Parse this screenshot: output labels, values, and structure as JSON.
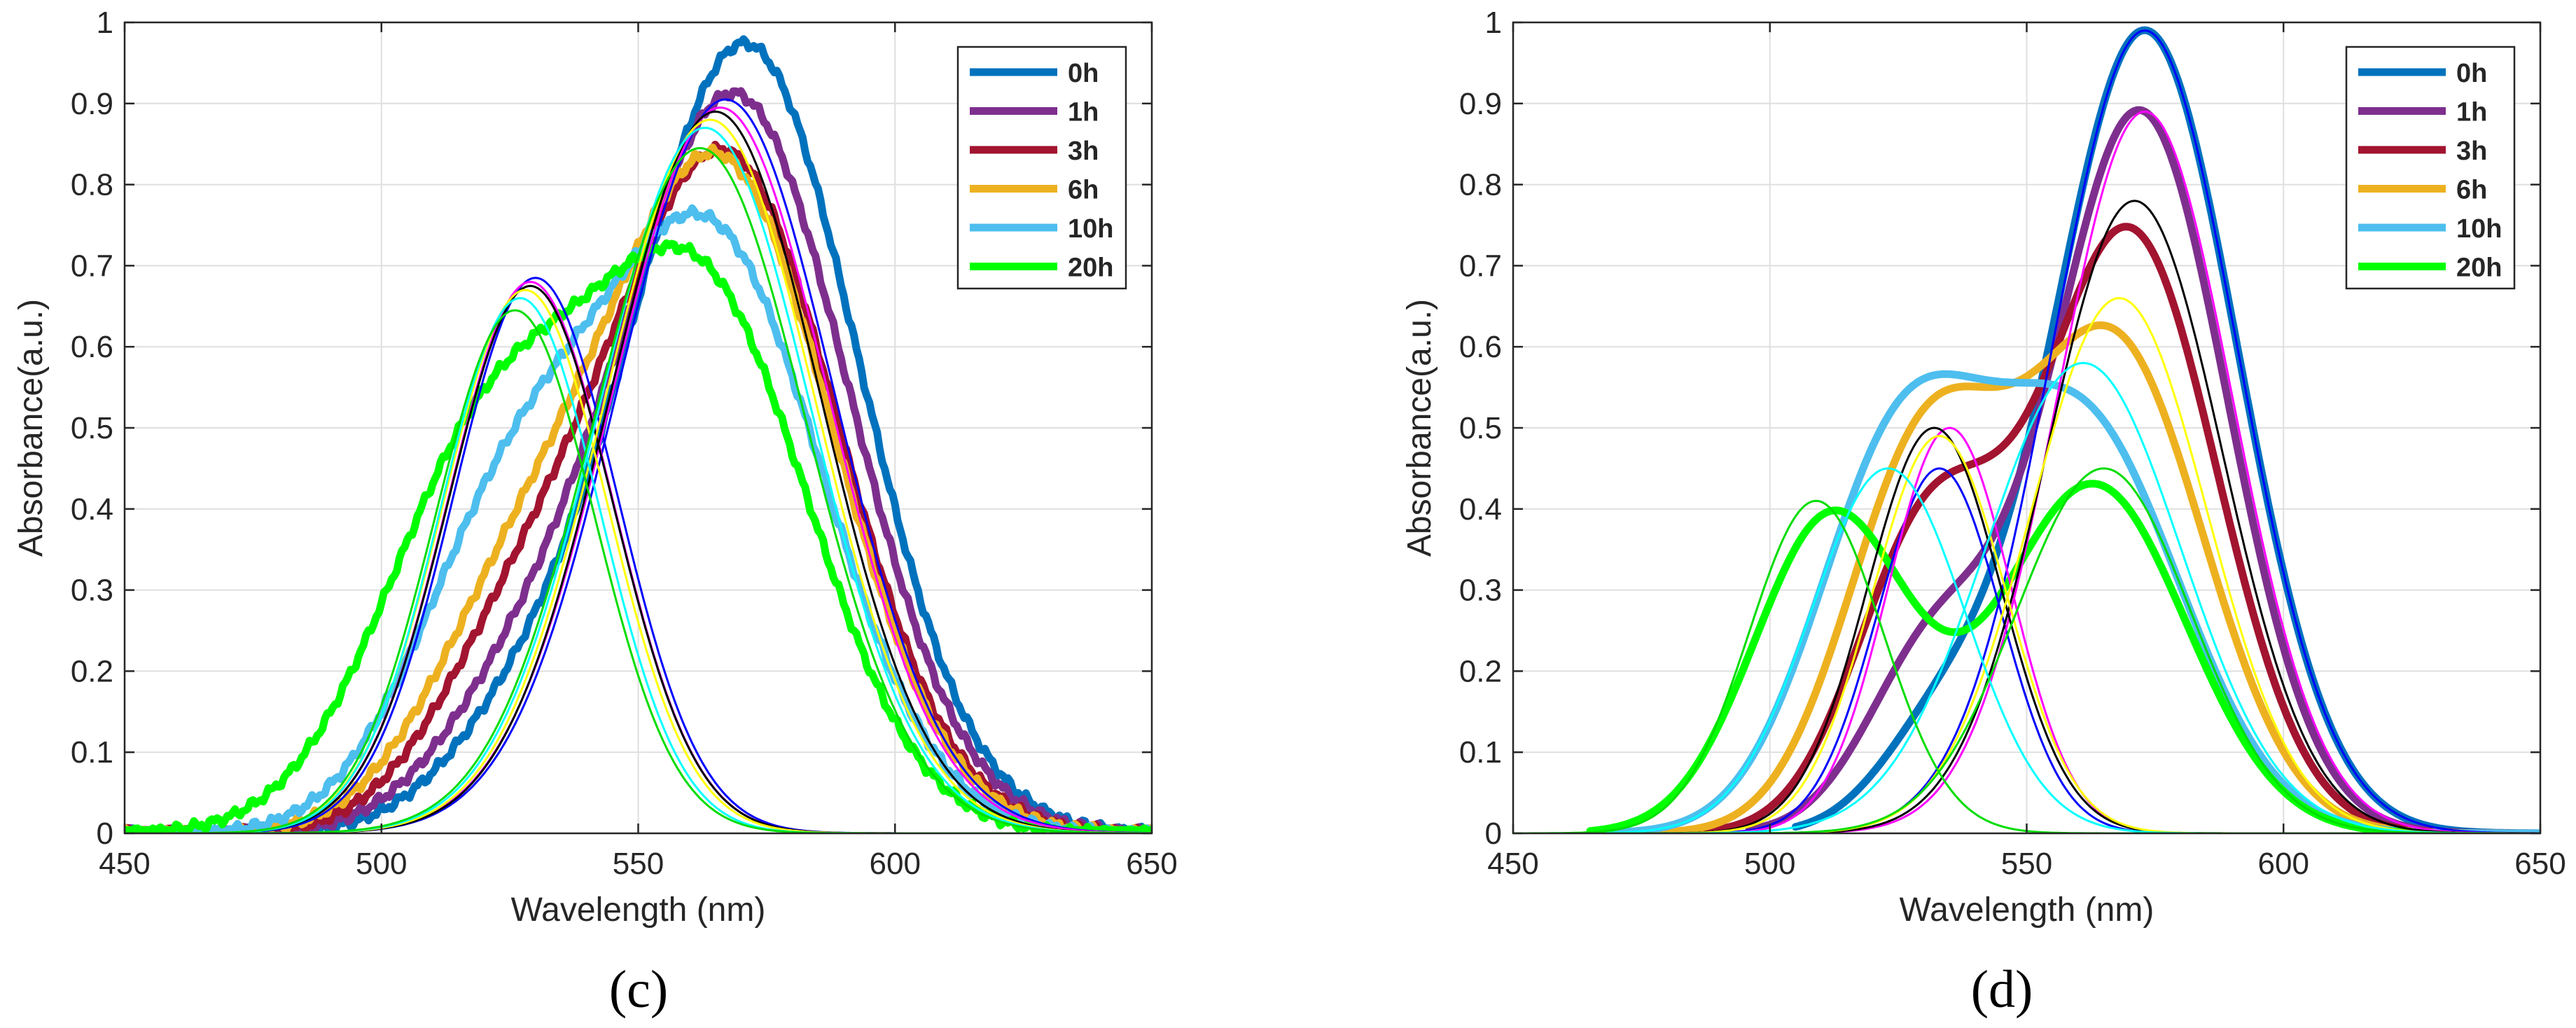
{
  "figure": {
    "panels": [
      "c",
      "d"
    ]
  },
  "chart_data": [
    {
      "type": "line",
      "panel_label": "(c)",
      "xlabel": "Wavelength (nm)",
      "ylabel": "Absorbance(a.u.)",
      "xlim": [
        450,
        650
      ],
      "ylim": [
        0,
        1
      ],
      "x_ticks": [
        450,
        500,
        550,
        600,
        650
      ],
      "y_ticks": [
        0,
        0.1,
        0.2,
        0.3,
        0.4,
        0.5,
        0.6,
        0.7,
        0.8,
        0.9,
        1
      ],
      "grid": true,
      "legend_position": "top-right",
      "legend": [
        "0h",
        "1h",
        "3h",
        "6h",
        "10h",
        "20h"
      ],
      "series": [
        {
          "name": "0h",
          "color": "#0072BD",
          "kind": "measured",
          "components": [
            {
              "mu": 571,
              "sigma": 21.8,
              "amp": 0.97
            },
            {
              "mu": 529,
              "sigma": 16.5,
              "amp": 0.11
            }
          ],
          "noise": true
        },
        {
          "name": "1h",
          "color": "#7E2F8E",
          "kind": "measured",
          "components": [
            {
              "mu": 569,
              "sigma": 22,
              "amp": 0.905
            },
            {
              "mu": 528,
              "sigma": 17,
              "amp": 0.14
            }
          ],
          "noise": true
        },
        {
          "name": "3h",
          "color": "#A2142F",
          "kind": "measured",
          "components": [
            {
              "mu": 567,
              "sigma": 22,
              "amp": 0.83
            },
            {
              "mu": 527,
              "sigma": 17,
              "amp": 0.2
            }
          ],
          "noise": true
        },
        {
          "name": "6h",
          "color": "#EDB120",
          "kind": "measured",
          "components": [
            {
              "mu": 566,
              "sigma": 22,
              "amp": 0.82
            },
            {
              "mu": 526,
              "sigma": 17.5,
              "amp": 0.24
            }
          ],
          "noise": true
        },
        {
          "name": "10h",
          "color": "#4DBEEE",
          "kind": "measured",
          "components": [
            {
              "mu": 564,
              "sigma": 22,
              "amp": 0.73
            },
            {
              "mu": 524,
              "sigma": 18,
              "amp": 0.34
            }
          ],
          "noise": true
        },
        {
          "name": "20h",
          "color": "#00FF00",
          "kind": "measured",
          "components": [
            {
              "mu": 562,
              "sigma": 21.5,
              "amp": 0.66
            },
            {
              "mu": 520,
              "sigma": 20,
              "amp": 0.45
            }
          ],
          "noise": true
        },
        {
          "name": "fit-0h-a",
          "color": "#0000FF",
          "kind": "fit",
          "components": [
            {
              "mu": 530,
              "sigma": 16,
              "amp": 0.685
            }
          ]
        },
        {
          "name": "fit-0h-b",
          "color": "#0000FF",
          "kind": "fit",
          "components": [
            {
              "mu": 567,
              "sigma": 21,
              "amp": 0.905
            }
          ]
        },
        {
          "name": "fit-1h-a",
          "color": "#FF00FF",
          "kind": "fit",
          "components": [
            {
              "mu": 529,
              "sigma": 16,
              "amp": 0.68
            }
          ]
        },
        {
          "name": "fit-1h-b",
          "color": "#FF00FF",
          "kind": "fit",
          "components": [
            {
              "mu": 566,
              "sigma": 21,
              "amp": 0.895
            }
          ]
        },
        {
          "name": "fit-3h-a",
          "color": "#000000",
          "kind": "fit",
          "components": [
            {
              "mu": 529,
              "sigma": 16,
              "amp": 0.675
            }
          ]
        },
        {
          "name": "fit-3h-b",
          "color": "#000000",
          "kind": "fit",
          "components": [
            {
              "mu": 565,
              "sigma": 20.5,
              "amp": 0.89
            }
          ]
        },
        {
          "name": "fit-6h-a",
          "color": "#FFFF00",
          "kind": "fit",
          "components": [
            {
              "mu": 528,
              "sigma": 16,
              "amp": 0.67
            }
          ]
        },
        {
          "name": "fit-6h-b",
          "color": "#FFFF00",
          "kind": "fit",
          "components": [
            {
              "mu": 564,
              "sigma": 20.5,
              "amp": 0.88
            }
          ]
        },
        {
          "name": "fit-10h-a",
          "color": "#00FFFF",
          "kind": "fit",
          "components": [
            {
              "mu": 527,
              "sigma": 15.5,
              "amp": 0.66
            }
          ]
        },
        {
          "name": "fit-10h-b",
          "color": "#00FFFF",
          "kind": "fit",
          "components": [
            {
              "mu": 563,
              "sigma": 20.5,
              "amp": 0.87
            }
          ]
        },
        {
          "name": "fit-20h-a",
          "color": "#00DD00",
          "kind": "fit",
          "components": [
            {
              "mu": 526,
              "sigma": 15.5,
              "amp": 0.645
            }
          ]
        },
        {
          "name": "fit-20h-b",
          "color": "#00DD00",
          "kind": "fit",
          "components": [
            {
              "mu": 562,
              "sigma": 20.5,
              "amp": 0.845
            }
          ]
        }
      ]
    },
    {
      "type": "line",
      "panel_label": "(d)",
      "xlabel": "Wavelength (nm)",
      "ylabel": "Absorbance(a.u.)",
      "xlim": [
        450,
        650
      ],
      "ylim": [
        0,
        1
      ],
      "x_ticks": [
        450,
        500,
        550,
        600,
        650
      ],
      "y_ticks": [
        0,
        0.1,
        0.2,
        0.3,
        0.4,
        0.5,
        0.6,
        0.7,
        0.8,
        0.9,
        1
      ],
      "grid": true,
      "legend_position": "top-right",
      "legend": [
        "0h",
        "1h",
        "3h",
        "6h",
        "10h",
        "20h"
      ],
      "series": [
        {
          "name": "0h",
          "color": "#0072BD",
          "kind": "measured",
          "components": [
            {
              "mu": 573,
              "sigma": 18,
              "amp": 0.99
            },
            {
              "mu": 533,
              "sigma": 12,
              "amp": 0.11
            }
          ],
          "xstart": 505
        },
        {
          "name": "1h",
          "color": "#7E2F8E",
          "kind": "measured",
          "components": [
            {
              "mu": 572,
              "sigma": 17,
              "amp": 0.89
            },
            {
              "mu": 532,
              "sigma": 13,
              "amp": 0.22
            }
          ],
          "xstart": 496
        },
        {
          "name": "3h",
          "color": "#A2142F",
          "kind": "measured",
          "components": [
            {
              "mu": 570,
              "sigma": 17,
              "amp": 0.74
            },
            {
              "mu": 531,
              "sigma": 14,
              "amp": 0.37
            }
          ],
          "xstart": 484
        },
        {
          "name": "6h",
          "color": "#EDB120",
          "kind": "measured",
          "components": [
            {
              "mu": 567,
              "sigma": 17.5,
              "amp": 0.6
            },
            {
              "mu": 530,
              "sigma": 15,
              "amp": 0.46
            }
          ],
          "xstart": 478
        },
        {
          "name": "10h",
          "color": "#4DBEEE",
          "kind": "measured",
          "components": [
            {
              "mu": 561,
              "sigma": 19,
              "amp": 0.5
            },
            {
              "mu": 525,
              "sigma": 16,
              "amp": 0.45
            }
          ],
          "xstart": 469
        },
        {
          "name": "20h",
          "color": "#00FF00",
          "kind": "measured",
          "components": [
            {
              "mu": 563,
              "sigma": 18,
              "amp": 0.43
            },
            {
              "mu": 512,
              "sigma": 15,
              "amp": 0.39
            }
          ],
          "xstart": 465,
          "xend": 625
        },
        {
          "name": "fit-0h-a",
          "color": "#0000FF",
          "kind": "fit",
          "components": [
            {
              "mu": 533,
              "sigma": 12,
              "amp": 0.45
            }
          ]
        },
        {
          "name": "fit-0h-b",
          "color": "#0000FF",
          "kind": "fit",
          "components": [
            {
              "mu": 573,
              "sigma": 18,
              "amp": 0.99
            }
          ]
        },
        {
          "name": "fit-1h-a",
          "color": "#FF00FF",
          "kind": "fit",
          "components": [
            {
              "mu": 535,
              "sigma": 12,
              "amp": 0.5
            }
          ]
        },
        {
          "name": "fit-1h-b",
          "color": "#FF00FF",
          "kind": "fit",
          "components": [
            {
              "mu": 573,
              "sigma": 17,
              "amp": 0.89
            }
          ]
        },
        {
          "name": "fit-3h-a",
          "color": "#000000",
          "kind": "fit",
          "components": [
            {
              "mu": 532,
              "sigma": 13,
              "amp": 0.5
            }
          ]
        },
        {
          "name": "fit-3h-b",
          "color": "#000000",
          "kind": "fit",
          "components": [
            {
              "mu": 571,
              "sigma": 17,
              "amp": 0.78
            }
          ]
        },
        {
          "name": "fit-6h-a",
          "color": "#FFFF00",
          "kind": "fit",
          "components": [
            {
              "mu": 533,
              "sigma": 13,
              "amp": 0.49
            }
          ]
        },
        {
          "name": "fit-6h-b",
          "color": "#FFFF00",
          "kind": "fit",
          "components": [
            {
              "mu": 568,
              "sigma": 17,
              "amp": 0.66
            }
          ]
        },
        {
          "name": "fit-10h-a",
          "color": "#00FFFF",
          "kind": "fit",
          "components": [
            {
              "mu": 523,
              "sigma": 15,
              "amp": 0.45
            }
          ]
        },
        {
          "name": "fit-10h-b",
          "color": "#00FFFF",
          "kind": "fit",
          "components": [
            {
              "mu": 561,
              "sigma": 19,
              "amp": 0.58
            }
          ]
        },
        {
          "name": "fit-20h-a",
          "color": "#00DD00",
          "kind": "fit",
          "components": [
            {
              "mu": 509,
              "sigma": 13,
              "amp": 0.41
            }
          ]
        },
        {
          "name": "fit-20h-b",
          "color": "#00DD00",
          "kind": "fit",
          "components": [
            {
              "mu": 565,
              "sigma": 17,
              "amp": 0.45
            }
          ]
        }
      ]
    }
  ]
}
